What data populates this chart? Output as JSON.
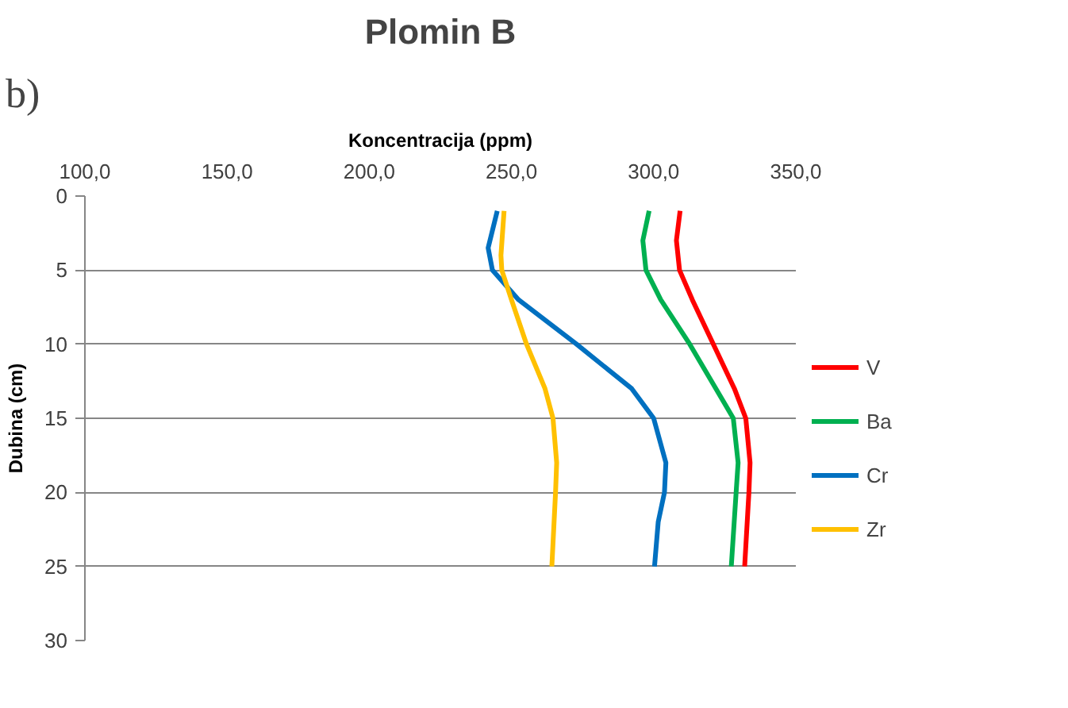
{
  "chart_data": {
    "type": "line",
    "title": "Plomin B",
    "xlabel": "Koncentracija (ppm)",
    "ylabel": "Dubina (cm)",
    "annotations": [
      "b)"
    ],
    "xlim": [
      100,
      350
    ],
    "xticks": [
      {
        "value": 100,
        "label": "100,0"
      },
      {
        "value": 150,
        "label": "150,0"
      },
      {
        "value": 200,
        "label": "200,0"
      },
      {
        "value": 250,
        "label": "250,0"
      },
      {
        "value": 300,
        "label": "300,0"
      },
      {
        "value": 350,
        "label": "350,0"
      }
    ],
    "ylim": [
      30,
      0
    ],
    "yticks": [
      0,
      5,
      10,
      15,
      20,
      25,
      30
    ],
    "grid": "y",
    "legend": "right",
    "marker": "none",
    "line_style": "solid",
    "series": [
      {
        "name": "V",
        "color": "#ff0000",
        "x": [
          309.3,
          308,
          309.1,
          313.6,
          321,
          328.4,
          332.4,
          333.9,
          333.5,
          332
        ],
        "values": [
          1,
          3,
          5,
          7,
          10,
          13,
          15,
          18,
          20,
          25
        ]
      },
      {
        "name": "Ba",
        "color": "#00b050",
        "x": [
          298.4,
          296.2,
          297.3,
          302.5,
          312.7,
          321.9,
          328,
          329.7,
          329,
          327.3
        ],
        "values": [
          1,
          3,
          5,
          7,
          10,
          13,
          15,
          18,
          20,
          25
        ]
      },
      {
        "name": "Cr",
        "color": "#0070c0",
        "x": [
          245,
          241.8,
          243.3,
          252.5,
          272.9,
          292.3,
          300,
          304.3,
          303.8,
          301.6,
          300.3
        ],
        "values": [
          1,
          3.5,
          5,
          7,
          10,
          13,
          15,
          18,
          20,
          22,
          25
        ]
      },
      {
        "name": "Zr",
        "color": "#ffc000",
        "x": [
          247.4,
          246.3,
          246.6,
          250,
          255.3,
          261.8,
          264.6,
          265.9,
          265.5,
          264.2
        ],
        "values": [
          1,
          4,
          5,
          7,
          10,
          13,
          15,
          18,
          20,
          25
        ]
      }
    ]
  }
}
